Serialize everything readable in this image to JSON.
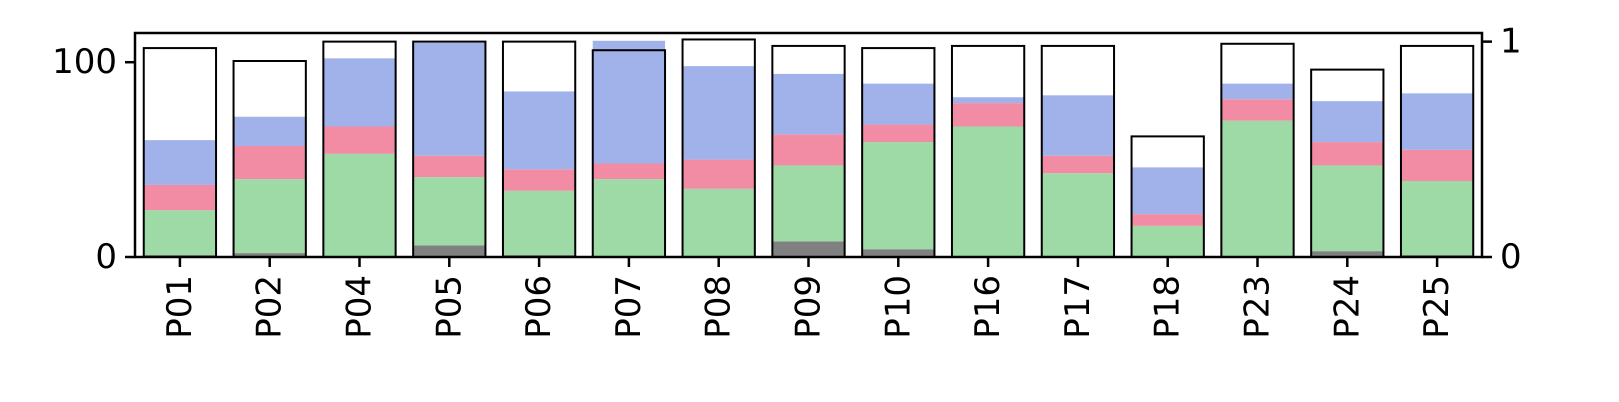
{
  "chart_data": {
    "type": "bar",
    "stacked": true,
    "dual_axis": true,
    "categories": [
      "P01",
      "P02",
      "P04",
      "P05",
      "P06",
      "P07",
      "P08",
      "P09",
      "P10",
      "P16",
      "P17",
      "P18",
      "P23",
      "P24",
      "P25"
    ],
    "series": [
      {
        "color": "#808080",
        "values": [
          1,
          2,
          0,
          6,
          1,
          0,
          0,
          8,
          4,
          0,
          0,
          0,
          0,
          3,
          1
        ]
      },
      {
        "color": "#9ddaa5",
        "values": [
          23,
          38,
          53,
          35,
          33,
          40,
          35,
          39,
          55,
          67,
          43,
          16,
          70,
          44,
          38
        ]
      },
      {
        "color": "#f28ca4",
        "values": [
          13,
          17,
          14,
          11,
          11,
          8,
          15,
          16,
          9,
          12,
          9,
          6,
          11,
          12,
          16
        ]
      },
      {
        "color": "#a1b1ea",
        "values": [
          23,
          15,
          35,
          58,
          40,
          63,
          48,
          31,
          21,
          3,
          31,
          24,
          8,
          21,
          29
        ]
      }
    ],
    "outline_series": {
      "axis": "right",
      "color": "#000000",
      "values": [
        0.97,
        0.91,
        1.0,
        1.0,
        1.0,
        0.96,
        1.01,
        0.98,
        0.97,
        0.98,
        0.98,
        0.56,
        0.99,
        0.87,
        0.98
      ]
    },
    "left_axis": {
      "ylim": [
        0,
        115
      ],
      "ticks": [
        0,
        100
      ]
    },
    "right_axis": {
      "ylim": [
        0,
        1.04
      ],
      "ticks": [
        0,
        1
      ]
    },
    "xlabel": "",
    "ylabel": "",
    "grid": false
  }
}
